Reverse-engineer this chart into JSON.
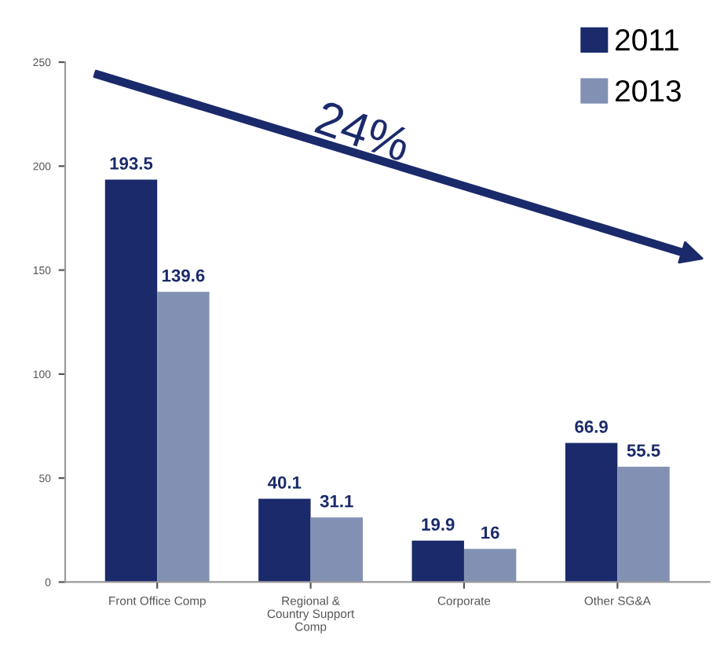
{
  "chart_data": {
    "type": "bar",
    "categories": [
      "Front Office Comp",
      "Regional &\nCountry Support\nComp",
      "Corporate",
      "Other SG&A"
    ],
    "series": [
      {
        "name": "2011",
        "color": "#1b2a6b",
        "values": [
          193.5,
          40.1,
          19.9,
          66.9
        ]
      },
      {
        "name": "2013",
        "color": "#8291b3",
        "values": [
          139.6,
          31.1,
          16,
          55.5
        ]
      }
    ],
    "ylim": [
      0,
      250
    ],
    "yticks": [
      0,
      50,
      100,
      150,
      200,
      250
    ],
    "data_labels": true,
    "legend": "top right",
    "grid": false,
    "annotations": [
      "24%"
    ]
  }
}
